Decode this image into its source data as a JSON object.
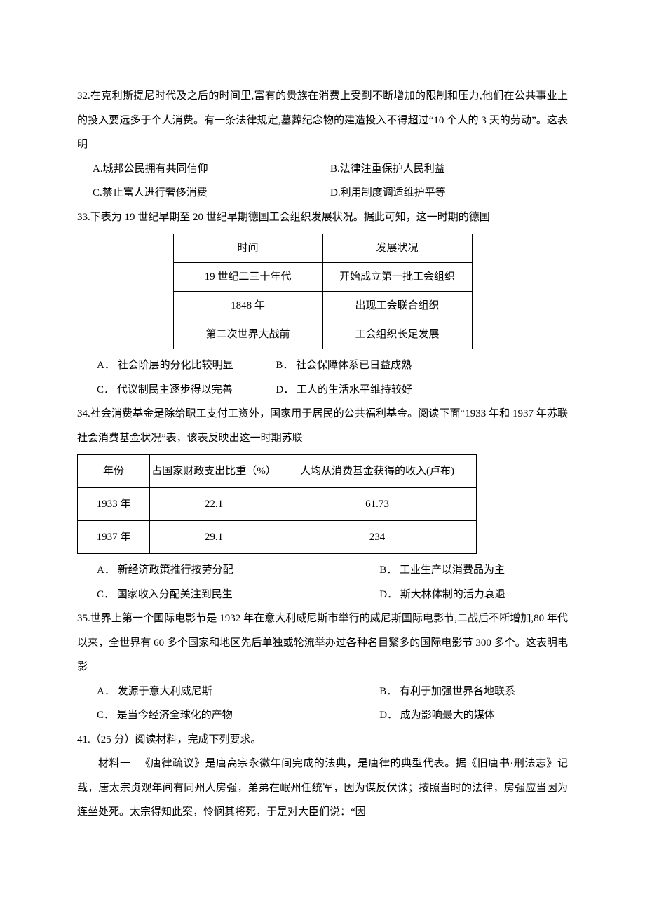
{
  "q32": {
    "stem": "32.在克利斯提尼时代及之后的时间里,富有的贵族在消费上受到不断增加的限制和压力,他们在公共事业上的投入要远多于个人消费。有一条法律规定,墓葬纪念物的建造投入不得超过“10 个人的 3 天的劳动”。这表明",
    "A": "A.城邦公民拥有共同信仰",
    "B": "B.法律注重保护人民利益",
    "C": "C.禁止富人进行奢侈消费",
    "D": "D.利用制度调适维护平等"
  },
  "q33": {
    "stem": "33.下表为 19 世纪早期至 20 世纪早期德国工会组织发展状况。据此可知，这一时期的德国",
    "table": {
      "columns": [
        "时间",
        "发展状况"
      ],
      "rows": [
        [
          "19 世纪二三十年代",
          "开始成立第一批工会组织"
        ],
        [
          "1848 年",
          "出现工会联合组织"
        ],
        [
          "第二次世界大战前",
          "工会组织长足发展"
        ]
      ]
    },
    "A": "A． 社会阶层的分化比较明显",
    "B": "B． 社会保障体系已日益成熟",
    "C": "C． 代议制民主逐步得以完善",
    "D": "D． 工人的生活水平维持较好"
  },
  "q34": {
    "stem": "34.社会消费基金是除给职工支付工资外，国家用于居民的公共福利基金。阅读下面“1933 年和 1937 年苏联社会消费基金状况”表，该表反映出这一时期苏联",
    "table": {
      "columns": [
        "年份",
        "占国家财政支出比重（%）",
        "人均从消费基金获得的收入(卢布)"
      ],
      "rows": [
        [
          "1933 年",
          "22.1",
          "61.73"
        ],
        [
          "1937 年",
          "29.1",
          "234"
        ]
      ]
    },
    "A": "A． 新经济政策推行按劳分配",
    "B": "B． 工业生产以消费品为主",
    "C": "C． 国家收入分配关注到民生",
    "D": "D． 斯大林体制的活力衰退"
  },
  "q35": {
    "stem": "35.世界上第一个国际电影节是 1932 年在意大利威尼斯市举行的威尼斯国际电影节,二战后不断增加,80 年代以来，全世界有 60 多个国家和地区先后单独或轮流举办过各种名目繁多的国际电影节 300 多个。这表明电影",
    "A": "A． 发源于意大利威尼斯",
    "B": "B． 有利于加强世界各地联系",
    "C": "C． 是当今经济全球化的产物",
    "D": "D． 成为影响最大的媒体"
  },
  "q41": {
    "stem": "41.（25 分）阅读材料，完成下列要求。",
    "mat1_label": "材料一",
    "mat1_body": "《唐律疏议》是唐高宗永徽年间完成的法典，是唐律的典型代表。据《旧唐书·刑法志》记载，唐太宗贞观年间有同州人房强，弟弟在岷州任统军，因为谋反伏诛；按照当时的法律，房强应当因为连坐处死。太宗得知此案，怜悯其将死，于是对大臣们说：“因"
  }
}
